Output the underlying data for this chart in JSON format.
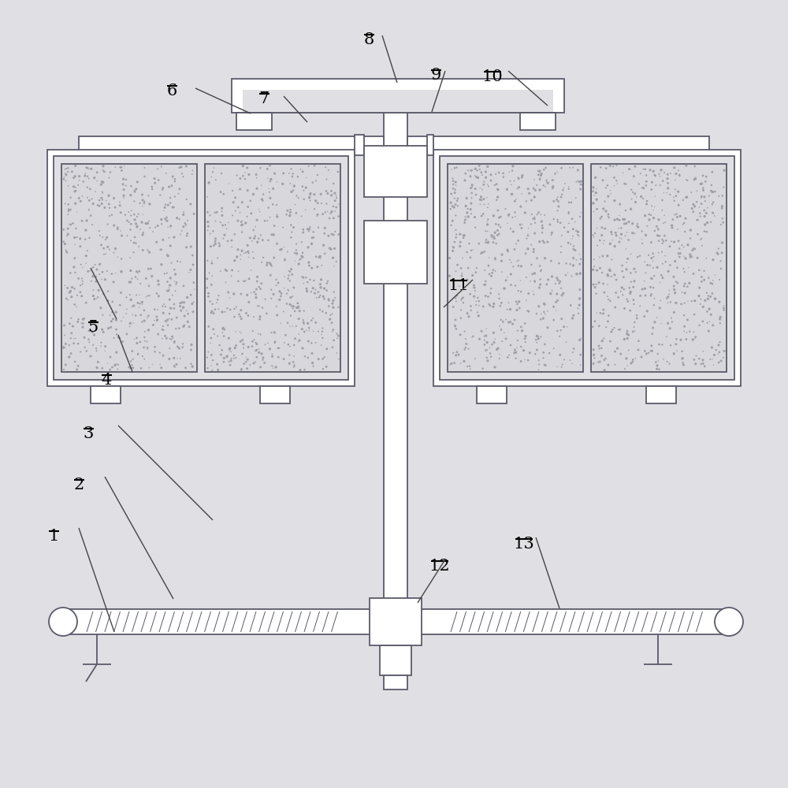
{
  "bg_color": "#e0e0e4",
  "line_color": "#5a5a6a",
  "figsize": [
    10,
    10
  ],
  "dpi": 100
}
